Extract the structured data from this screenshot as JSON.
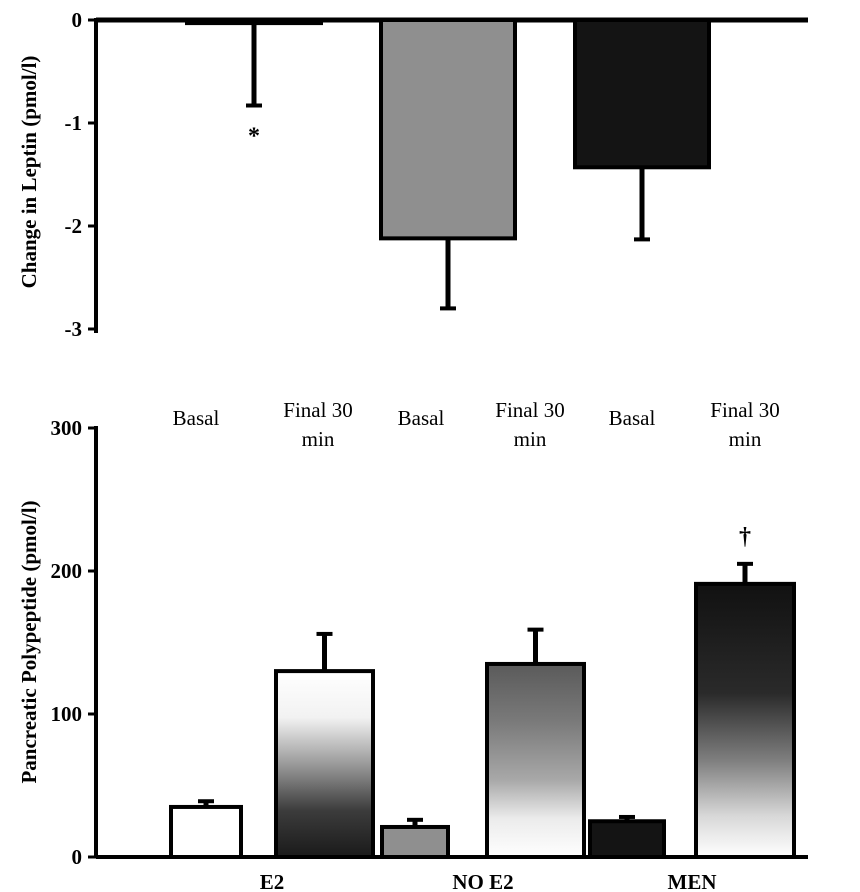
{
  "chart_data": [
    {
      "type": "bar",
      "categories": [
        "E2",
        "NO E2",
        "MEN"
      ],
      "ylabel": "Change in Leptin (pmol/l)",
      "ylim": [
        -3,
        0
      ],
      "yticks": [
        "0",
        "-1",
        "-2",
        "-3"
      ],
      "bar_fills": [
        "white",
        "gray",
        "black"
      ],
      "values": [
        -0.03,
        -2.12,
        -1.43
      ],
      "errors": [
        0.8,
        0.68,
        0.7
      ],
      "annotations": [
        "*",
        "",
        ""
      ]
    },
    {
      "type": "bar",
      "categories": [
        "E2",
        "NO E2",
        "MEN"
      ],
      "column_labels": [
        "Basal",
        "Final 30 min",
        "Basal",
        "Final 30 min",
        "Basal",
        "Final 30 min"
      ],
      "ylabel": "Pancreatic Polypeptide (pmol/l)",
      "ylim": [
        0,
        300
      ],
      "yticks": [
        "0",
        "100",
        "200",
        "300"
      ],
      "series": [
        {
          "values": [
            35,
            21,
            25
          ],
          "errors": [
            4,
            5,
            3
          ]
        },
        {
          "values": [
            130,
            135,
            191
          ],
          "errors": [
            26,
            24,
            14
          ]
        }
      ],
      "annotations": [
        "",
        "",
        "†"
      ]
    }
  ]
}
